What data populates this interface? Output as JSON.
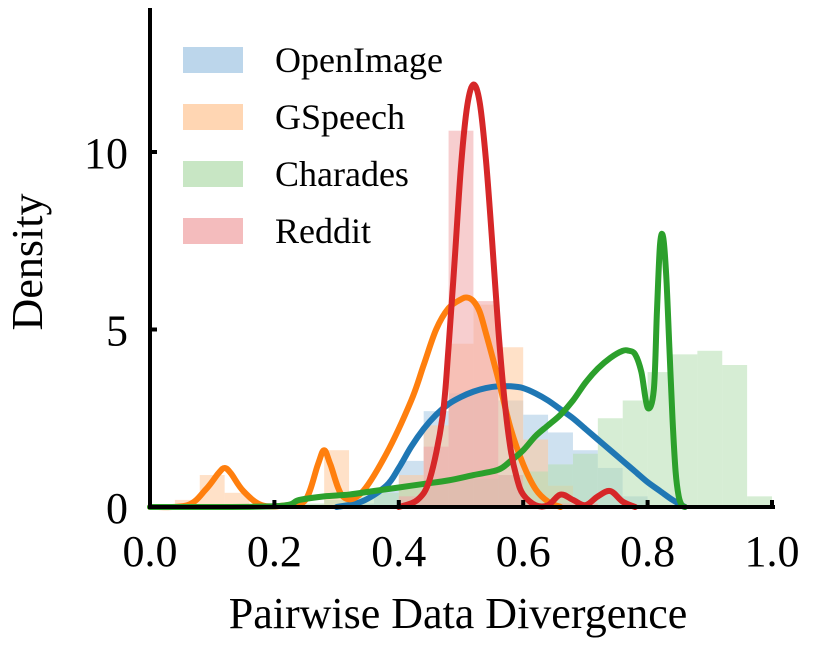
{
  "chart_data": {
    "type": "area",
    "xlabel": "Pairwise Data Divergence",
    "ylabel": "Density",
    "xlim": [
      0.0,
      1.0
    ],
    "ylim": [
      0,
      14
    ],
    "xticks": [
      "0.0",
      "0.2",
      "0.4",
      "0.6",
      "0.8",
      "1.0"
    ],
    "yticks": [
      "0",
      "5",
      "10"
    ],
    "grid": false,
    "legend_position": "top-left",
    "bin_width": 0.04,
    "series": [
      {
        "name": "OpenImage",
        "color": "#1f77b4",
        "fill": "#a6c8e4",
        "hist_start": 0.32,
        "hist": [
          0.1,
          0.5,
          1.3,
          2.7,
          3.2,
          3.3,
          3.0,
          2.6,
          2.1,
          1.6,
          1.1,
          0.3
        ],
        "curve_x": [
          0.3,
          0.34,
          0.38,
          0.4,
          0.42,
          0.44,
          0.46,
          0.48,
          0.5,
          0.52,
          0.54,
          0.56,
          0.58,
          0.6,
          0.62,
          0.64,
          0.66,
          0.68,
          0.7,
          0.72,
          0.74,
          0.76,
          0.78,
          0.8,
          0.82,
          0.84,
          0.86
        ],
        "curve_y": [
          0.0,
          0.15,
          0.6,
          1.1,
          1.7,
          2.2,
          2.6,
          2.9,
          3.1,
          3.25,
          3.35,
          3.4,
          3.4,
          3.35,
          3.2,
          3.0,
          2.75,
          2.5,
          2.2,
          1.9,
          1.6,
          1.3,
          1.0,
          0.7,
          0.45,
          0.2,
          0.0
        ]
      },
      {
        "name": "GSpeech",
        "color": "#ff7f0e",
        "fill": "#ffc89a",
        "hist_start": 0.04,
        "hist": [
          0.2,
          0.9,
          0.4,
          0.0,
          0.0,
          0.0,
          1.6,
          0.0,
          0.0,
          0.9,
          2.3,
          4.6,
          5.7,
          4.5,
          1.9,
          0.6,
          0.1
        ],
        "curve_x": [
          0.0,
          0.06,
          0.09,
          0.11,
          0.12,
          0.13,
          0.15,
          0.18,
          0.22,
          0.25,
          0.27,
          0.28,
          0.29,
          0.31,
          0.34,
          0.38,
          0.42,
          0.44,
          0.46,
          0.48,
          0.5,
          0.51,
          0.52,
          0.53,
          0.54,
          0.56,
          0.58,
          0.6,
          0.62,
          0.64,
          0.66
        ],
        "curve_y": [
          0.0,
          0.05,
          0.5,
          0.95,
          1.1,
          0.95,
          0.45,
          0.05,
          0.05,
          0.2,
          1.2,
          1.6,
          1.2,
          0.3,
          0.4,
          1.5,
          3.0,
          4.0,
          5.0,
          5.6,
          5.85,
          5.9,
          5.8,
          5.5,
          4.9,
          3.6,
          2.2,
          1.2,
          0.5,
          0.15,
          0.0
        ]
      },
      {
        "name": "Charades",
        "color": "#2ca02c",
        "fill": "#b5deb0",
        "hist_start": 0.24,
        "hist": [
          0.1,
          0.2,
          0.3,
          0.4,
          0.6,
          0.7,
          0.8,
          0.8,
          0.9,
          1.0,
          1.2,
          1.5,
          2.5,
          3.0,
          3.8,
          4.3,
          4.4,
          4.0,
          0.3
        ],
        "curve_x": [
          0.0,
          0.2,
          0.24,
          0.28,
          0.32,
          0.36,
          0.4,
          0.44,
          0.48,
          0.52,
          0.56,
          0.58,
          0.6,
          0.62,
          0.64,
          0.66,
          0.68,
          0.7,
          0.72,
          0.74,
          0.76,
          0.77,
          0.78,
          0.79,
          0.8,
          0.81,
          0.815,
          0.82,
          0.825,
          0.83,
          0.835,
          0.84,
          0.845,
          0.85,
          0.855,
          0.86
        ],
        "curve_y": [
          0.0,
          0.02,
          0.2,
          0.3,
          0.35,
          0.45,
          0.55,
          0.65,
          0.75,
          0.9,
          1.05,
          1.3,
          1.6,
          2.0,
          2.3,
          2.6,
          3.0,
          3.5,
          3.9,
          4.2,
          4.4,
          4.4,
          4.3,
          3.8,
          2.8,
          3.3,
          5.5,
          7.4,
          7.6,
          6.5,
          4.5,
          2.5,
          1.0,
          0.3,
          0.05,
          0.0
        ]
      },
      {
        "name": "Reddit",
        "color": "#d62728",
        "fill": "#f0a6a7",
        "hist_start": 0.4,
        "hist": [
          0.3,
          1.7,
          10.6,
          5.8,
          0.9,
          0.1,
          0.1,
          0.1
        ],
        "curve_x": [
          0.4,
          0.43,
          0.45,
          0.47,
          0.48,
          0.49,
          0.5,
          0.51,
          0.52,
          0.53,
          0.54,
          0.55,
          0.56,
          0.57,
          0.58,
          0.59,
          0.6,
          0.62,
          0.64,
          0.66,
          0.68,
          0.7,
          0.72,
          0.74,
          0.76,
          0.78
        ],
        "curve_y": [
          0.0,
          0.2,
          0.8,
          2.5,
          4.5,
          7.0,
          9.6,
          11.3,
          11.9,
          11.4,
          9.8,
          7.5,
          5.0,
          3.0,
          1.6,
          0.8,
          0.35,
          0.05,
          0.05,
          0.35,
          0.2,
          0.05,
          0.3,
          0.45,
          0.15,
          0.0
        ]
      }
    ]
  }
}
